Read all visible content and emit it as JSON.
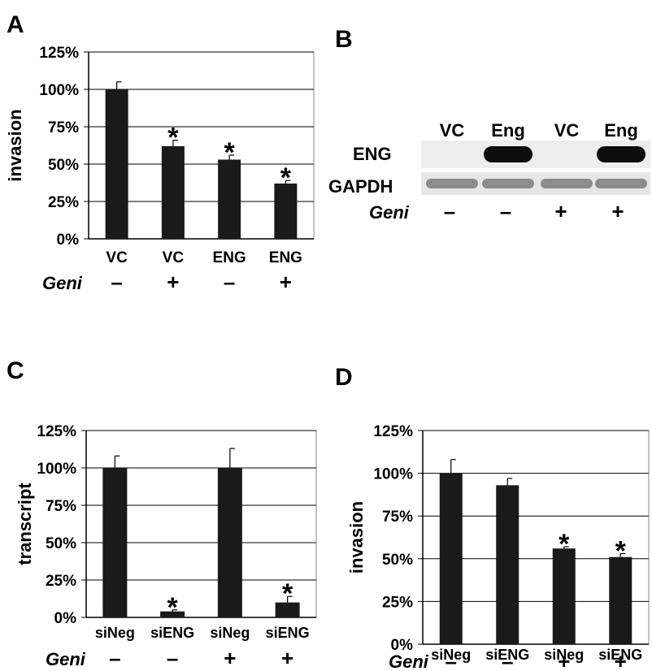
{
  "panels": {
    "A": {
      "letter": "A"
    },
    "B": {
      "letter": "B"
    },
    "C": {
      "letter": "C"
    },
    "D": {
      "letter": "D"
    }
  },
  "blot": {
    "lanes": [
      "VC",
      "Eng",
      "VC",
      "Eng"
    ],
    "rows": [
      "ENG",
      "GAPDH"
    ],
    "geni_label": "Geni",
    "geni_signs": [
      "–",
      "–",
      "+",
      "+"
    ],
    "eng_band_present": [
      false,
      true,
      false,
      true
    ],
    "gapdh_band_present": [
      true,
      true,
      true,
      true
    ]
  },
  "chart_data": [
    {
      "panel": "A",
      "type": "bar",
      "ylabel": "invasion",
      "ylim": [
        0,
        125
      ],
      "yticks": [
        "0%",
        "25%",
        "50%",
        "75%",
        "100%",
        "125%"
      ],
      "grid": true,
      "categories": [
        "VC",
        "VC",
        "ENG",
        "ENG"
      ],
      "geni_label": "Geni",
      "geni_signs": [
        "–",
        "+",
        "–",
        "+"
      ],
      "values": [
        100,
        62,
        53,
        37
      ],
      "errors": [
        5,
        4,
        3,
        2
      ],
      "significance": [
        "",
        "*",
        "*",
        "*"
      ],
      "bar_color": "#1a1a1a"
    },
    {
      "panel": "C",
      "type": "bar",
      "ylabel": "transcript",
      "ylim": [
        0,
        125
      ],
      "yticks": [
        "0%",
        "25%",
        "50%",
        "75%",
        "100%",
        "125%"
      ],
      "grid": true,
      "categories": [
        "siNeg",
        "siENG",
        "siNeg",
        "siENG"
      ],
      "geni_label": "Geni",
      "geni_signs": [
        "–",
        "–",
        "+",
        "+"
      ],
      "values": [
        100,
        4,
        100,
        10
      ],
      "errors": [
        8,
        1,
        13,
        4
      ],
      "significance": [
        "",
        "*",
        "",
        "*"
      ],
      "bar_color": "#1a1a1a"
    },
    {
      "panel": "D",
      "type": "bar",
      "ylabel": "invasion",
      "ylim": [
        0,
        125
      ],
      "yticks": [
        "0%",
        "25%",
        "50%",
        "75%",
        "100%",
        "125%"
      ],
      "grid": true,
      "categories": [
        "siNeg",
        "siENG",
        "siNeg",
        "siENG"
      ],
      "geni_label": "Geni",
      "geni_signs": [
        "–",
        "–",
        "+",
        "+"
      ],
      "values": [
        100,
        93,
        56,
        51
      ],
      "errors": [
        8,
        4,
        1,
        2
      ],
      "significance": [
        "",
        "",
        "*",
        "*"
      ],
      "bar_color": "#1a1a1a"
    }
  ]
}
